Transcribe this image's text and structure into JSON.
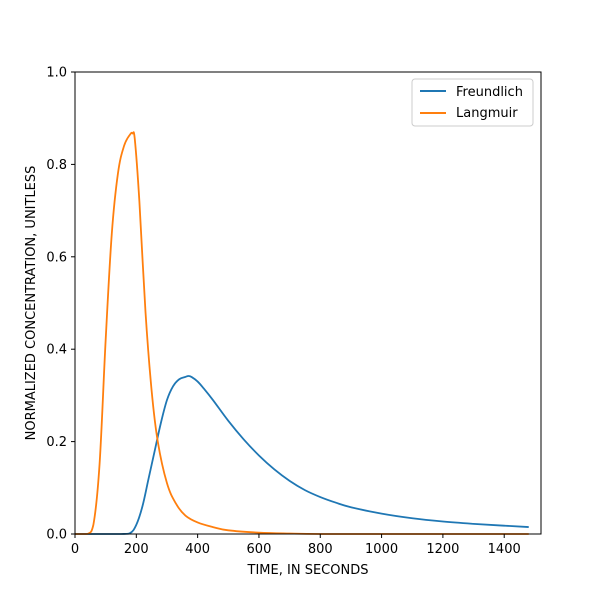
{
  "chart_data": {
    "type": "line",
    "title": "",
    "xlabel": "TIME, IN SECONDS",
    "ylabel": "NORMALIZED CONCENTRATION, UNITLESS",
    "xlim": [
      0,
      1520
    ],
    "ylim": [
      0,
      1.0
    ],
    "xticks": [
      0,
      200,
      400,
      600,
      800,
      1000,
      1200,
      1400
    ],
    "xtick_labels": [
      "0",
      "200",
      "400",
      "600",
      "800",
      "1000",
      "1200",
      "1400"
    ],
    "yticks": [
      0.0,
      0.2,
      0.4,
      0.6,
      0.8,
      1.0
    ],
    "ytick_labels": [
      "0.0",
      "0.2",
      "0.4",
      "0.6",
      "0.8",
      "1.0"
    ],
    "grid": false,
    "legend_position": "top-right",
    "series": [
      {
        "name": "Freundlich",
        "color": "#1f77b4",
        "x": [
          0,
          150,
          180,
          200,
          220,
          240,
          260,
          280,
          300,
          320,
          340,
          360,
          370,
          380,
          400,
          420,
          450,
          500,
          550,
          600,
          650,
          700,
          750,
          800,
          850,
          900,
          1000,
          1100,
          1200,
          1300,
          1400,
          1480
        ],
        "y": [
          0.0,
          0.0,
          0.002,
          0.02,
          0.06,
          0.12,
          0.18,
          0.24,
          0.29,
          0.32,
          0.335,
          0.34,
          0.342,
          0.34,
          0.33,
          0.315,
          0.29,
          0.245,
          0.205,
          0.17,
          0.14,
          0.115,
          0.095,
          0.08,
          0.068,
          0.058,
          0.044,
          0.034,
          0.027,
          0.022,
          0.018,
          0.015
        ]
      },
      {
        "name": "Langmuir",
        "color": "#ff7f0e",
        "x": [
          0,
          40,
          60,
          80,
          100,
          120,
          140,
          160,
          180,
          188,
          195,
          210,
          230,
          250,
          270,
          300,
          330,
          360,
          400,
          450,
          500,
          600,
          700,
          800,
          1000,
          1200,
          1480
        ],
        "y": [
          0.0,
          0.0,
          0.02,
          0.15,
          0.42,
          0.65,
          0.78,
          0.84,
          0.865,
          0.867,
          0.855,
          0.72,
          0.48,
          0.31,
          0.2,
          0.11,
          0.065,
          0.04,
          0.025,
          0.015,
          0.008,
          0.003,
          0.001,
          0.0,
          0.0,
          0.0,
          0.0
        ]
      }
    ]
  }
}
